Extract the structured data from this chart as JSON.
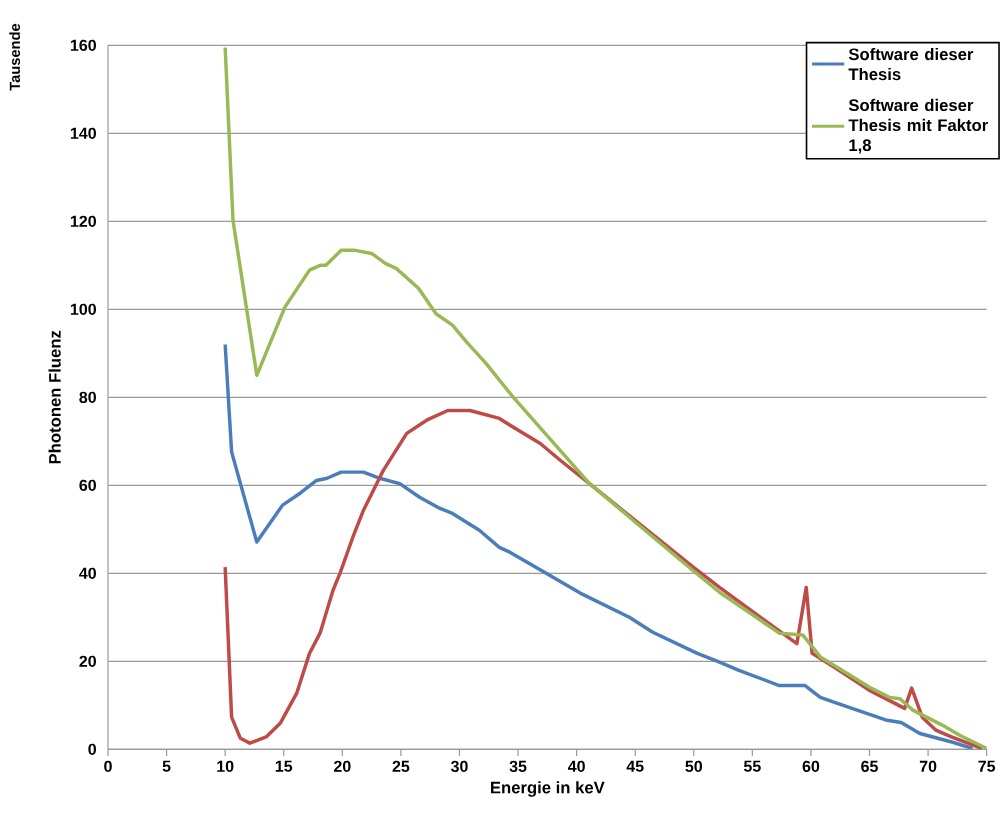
{
  "chart_data": {
    "type": "line",
    "xlabel": "Energie in keV",
    "ylabel": "Photonen Fluenz",
    "annotations": [
      "Tausende"
    ],
    "xlim": [
      0,
      75
    ],
    "xticks": [
      0,
      5,
      10,
      15,
      20,
      25,
      30,
      35,
      40,
      45,
      50,
      55,
      60,
      65,
      70,
      75
    ],
    "ylim": [
      0,
      160
    ],
    "yticks": [
      0,
      20,
      40,
      60,
      80,
      100,
      120,
      140,
      160
    ],
    "grid": "y",
    "legend": "top right",
    "marker": "none",
    "line_style": "solid",
    "series": [
      {
        "name": "Software dieser Thesis",
        "color": "#4a7ebb",
        "x": [
          10,
          10.55,
          12.7,
          14.9,
          16.4,
          17.8,
          18.7,
          19.9,
          21.8,
          23.2,
          24.9,
          26.6,
          28.3,
          29.4,
          31.7,
          33.4,
          34.3,
          37.4,
          40.3,
          44.5,
          46.5,
          50.3,
          52.2,
          53.8,
          57.3,
          59.5,
          60.8,
          62.2,
          66.5,
          67.7,
          69.3,
          72.1,
          73.8
        ],
        "values": [
          92,
          67.6,
          47.1,
          55.5,
          58.2,
          61.1,
          61.6,
          63,
          63,
          61.6,
          60.4,
          57.3,
          54.8,
          53.6,
          49.8,
          45.9,
          44.8,
          40,
          35.5,
          30,
          26.6,
          21.8,
          19.8,
          18,
          14.5,
          14.5,
          11.8,
          10.5,
          6.6,
          6.1,
          3.6,
          1.6,
          0.2
        ]
      },
      {
        "color": "#be4b48",
        "x": [
          10,
          10.55,
          11.3,
          12.1,
          13.5,
          14.7,
          16.1,
          17.2,
          18.1,
          19.2,
          19.8,
          20.9,
          21.8,
          23.5,
          25.5,
          27.2,
          29.0,
          30.9,
          33.4,
          34.6,
          36.9,
          38.6,
          41.1,
          49.9,
          52.2,
          58.8,
          59.6,
          60.1,
          62.2,
          65,
          68,
          68.6,
          69.5,
          70.7,
          72.1,
          74.6
        ],
        "values": [
          41.4,
          7.3,
          2.5,
          1.4,
          2.8,
          5.9,
          12.7,
          21.8,
          26.4,
          36.1,
          40,
          48.2,
          54.3,
          63.4,
          71.8,
          74.8,
          77,
          77,
          75.2,
          73.2,
          69.5,
          65.7,
          60.4,
          41.5,
          36.8,
          24,
          36.8,
          21.8,
          18.3,
          13.4,
          9.3,
          13.9,
          7.3,
          4.3,
          2.7,
          0.2
        ]
      },
      {
        "name": "Software dieser Thesis mit Faktor 1,8",
        "color": "#98b954",
        "x": [
          10,
          10.67,
          12.7,
          15.1,
          17.2,
          18.1,
          18.6,
          19.9,
          21.1,
          22.5,
          23.7,
          24.6,
          26.5,
          28.0,
          29.4,
          30.6,
          32.3,
          34.6,
          41.1,
          49.9,
          52.2,
          57.3,
          59.3,
          60.8,
          62.2,
          65,
          66.7,
          67.6,
          68.7,
          71.2,
          72.7,
          75
        ],
        "values": [
          159.5,
          120.2,
          85,
          100.5,
          108.9,
          110,
          110,
          113.4,
          113.4,
          112.7,
          110.4,
          109.3,
          104.8,
          99,
          96.4,
          92.6,
          87.6,
          80,
          60.4,
          40.7,
          35.7,
          26.4,
          26,
          21,
          18.7,
          14.1,
          11.8,
          11.5,
          8.9,
          5.5,
          3.2,
          0.2
        ]
      }
    ]
  }
}
